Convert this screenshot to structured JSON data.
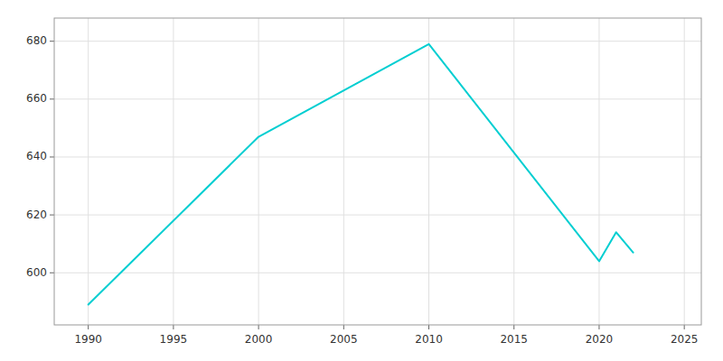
{
  "chart_data": {
    "type": "line",
    "x": [
      1990,
      2000,
      2010,
      2020,
      2021,
      2022
    ],
    "values": [
      589,
      647,
      679,
      604,
      614,
      607
    ],
    "color": "#00CED1",
    "xlim": [
      1988,
      2026
    ],
    "ylim": [
      582,
      688
    ],
    "xticks": [
      1990,
      1995,
      2000,
      2005,
      2010,
      2015,
      2020,
      2025
    ],
    "yticks": [
      600,
      620,
      640,
      660,
      680
    ],
    "grid": true
  }
}
